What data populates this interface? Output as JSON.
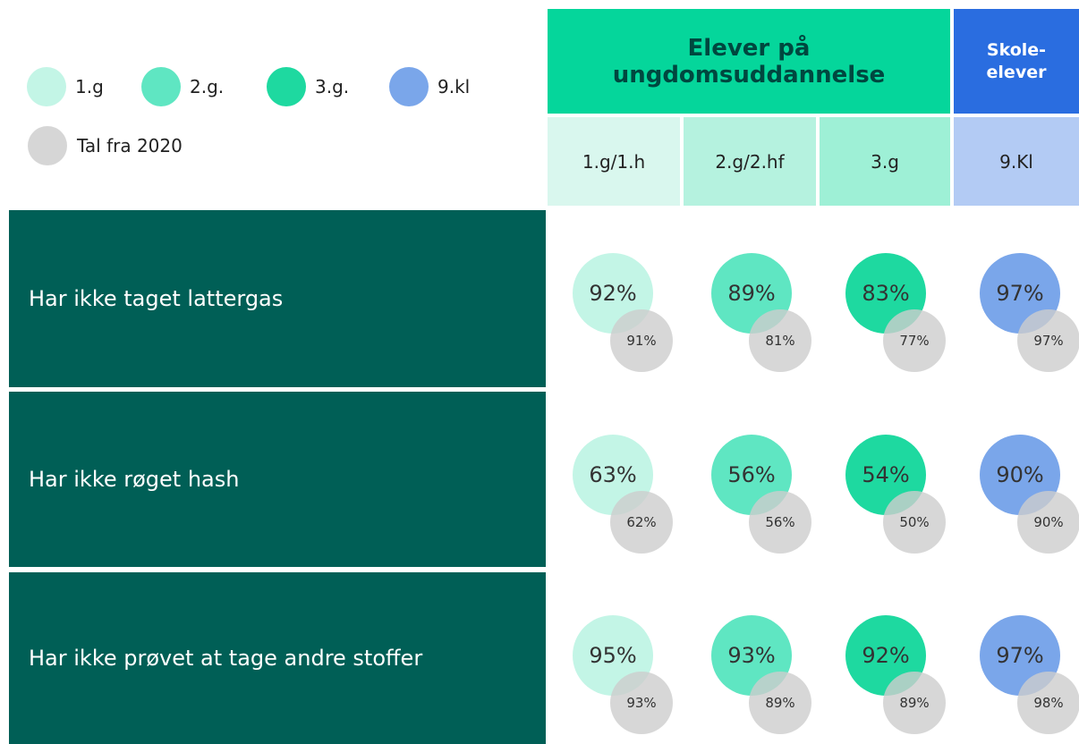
{
  "legend": {
    "items": [
      "1.g",
      "2.g.",
      "3.g.",
      "9.kl"
    ],
    "previous": "Tal fra 2020"
  },
  "header": {
    "groups": [
      "Elever på ungdomsuddannelse",
      "Skole-elever"
    ],
    "columns": [
      "1.g/1.h",
      "2.g/2.hf",
      "3.g",
      "9.Kl"
    ]
  },
  "rows": [
    {
      "label": "Har ikke taget lattergas",
      "values": [
        "92%",
        "89%",
        "83%",
        "97%"
      ],
      "previous": [
        "91%",
        "81%",
        "77%",
        "97%"
      ]
    },
    {
      "label": "Har ikke røget hash",
      "values": [
        "63%",
        "56%",
        "54%",
        "90%"
      ],
      "previous": [
        "62%",
        "56%",
        "50%",
        "90%"
      ]
    },
    {
      "label": "Har ikke prøvet at tage andre stoffer",
      "values": [
        "95%",
        "93%",
        "92%",
        "97%"
      ],
      "previous": [
        "93%",
        "89%",
        "89%",
        "98%"
      ]
    }
  ]
}
